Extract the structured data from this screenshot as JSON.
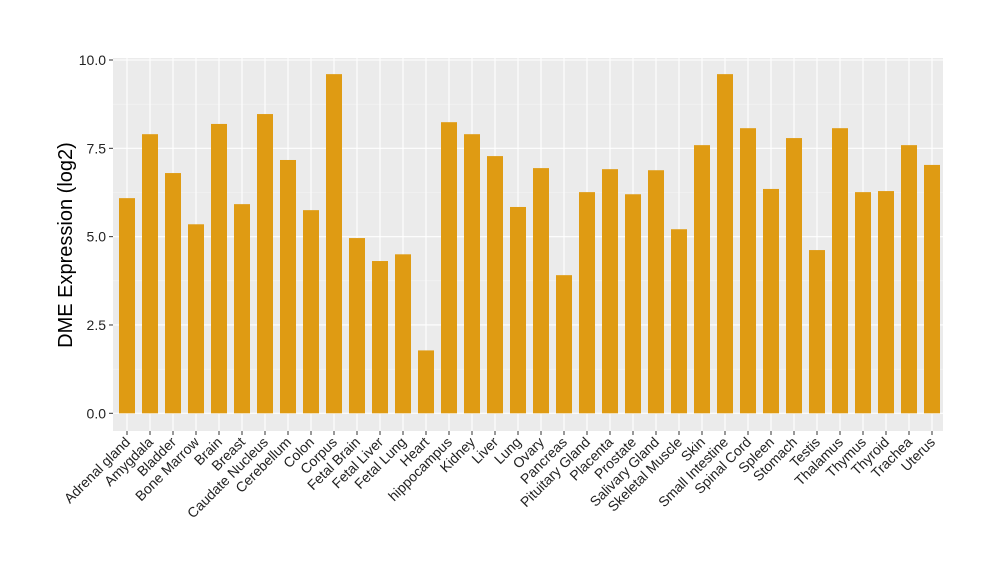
{
  "chart_data": {
    "type": "bar",
    "title": "",
    "xlabel": "",
    "ylabel": "DME Expression (log2)",
    "ylim": [
      -0.6,
      10.1
    ],
    "yticks": [
      "0.0",
      "2.5",
      "5.0",
      "7.5",
      "10.0"
    ],
    "grid": true,
    "bar_color": "#DF9B13",
    "categories": [
      "Adrenal gland",
      "Amygdala",
      "Bladder",
      "Bone Marrow",
      "Brain",
      "Breast",
      "Caudate Nucleus",
      "Cerebellum",
      "Colon",
      "Corpus",
      "Fetal Brain",
      "Fetal Liver",
      "Fetal Lung",
      "Heart",
      "hippocampus",
      "Kidney",
      "Liver",
      "Lung",
      "Ovary",
      "Pancreas",
      "Pituitary Gland",
      "Placenta",
      "Prostate",
      "Salivary Gland",
      "Skeletal Muscle",
      "Skin",
      "Small Intestine",
      "Spinal Cord",
      "Spleen",
      "Stomach",
      "Testis",
      "Thalamus",
      "Thymus",
      "Thyroid",
      "Trachea",
      "Uterus"
    ],
    "values": [
      6.09,
      7.9,
      6.8,
      5.35,
      8.19,
      5.92,
      8.47,
      7.17,
      5.75,
      9.6,
      4.96,
      4.31,
      4.5,
      1.78,
      8.24,
      7.9,
      7.28,
      5.84,
      6.94,
      3.91,
      6.26,
      6.91,
      6.2,
      6.88,
      5.21,
      7.59,
      9.6,
      8.07,
      6.35,
      7.79,
      4.62,
      8.07,
      6.26,
      6.29,
      7.59,
      7.03
    ]
  }
}
